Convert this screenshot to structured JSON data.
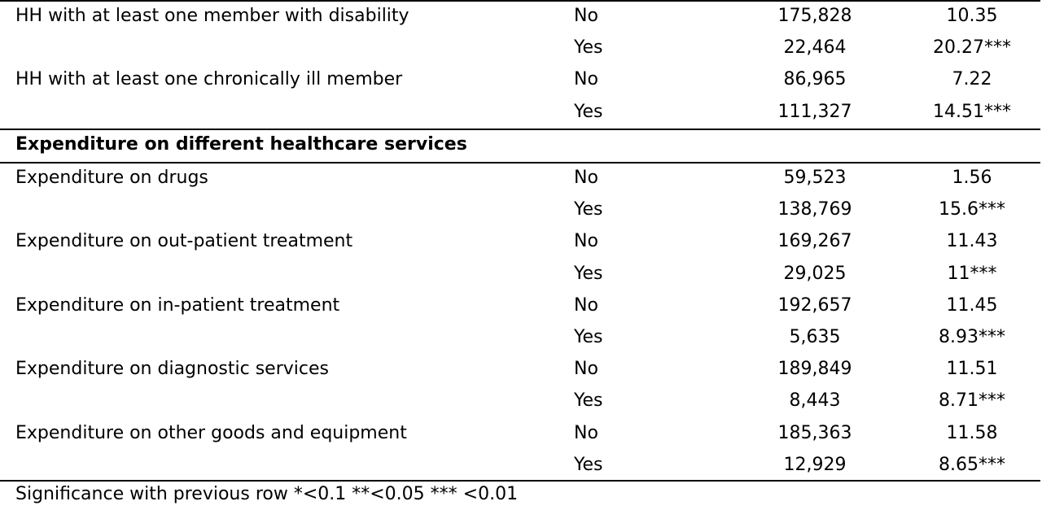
{
  "rows_top": [
    {
      "label": "HH with at least one member with disability",
      "cat": "No",
      "n": "175,828",
      "v": "10.35"
    },
    {
      "label": "",
      "cat": "Yes",
      "n": "22,464",
      "v": "20.27***"
    },
    {
      "label": "HH with at  least one chronically ill member",
      "cat": "No",
      "n": "86,965",
      "v": "7.22"
    },
    {
      "label": "",
      "cat": "Yes",
      "n": "111,327",
      "v": "14.51***"
    }
  ],
  "section_title": "Expenditure on different healthcare services",
  "rows_bottom": [
    {
      "label": "Expenditure on drugs",
      "cat": "No",
      "n": "59,523",
      "v": "1.56"
    },
    {
      "label": "",
      "cat": "Yes",
      "n": "138,769",
      "v": "15.6***"
    },
    {
      "label": "Expenditure on out-patient treatment",
      "cat": "No",
      "n": "169,267",
      "v": "11.43"
    },
    {
      "label": "",
      "cat": "Yes",
      "n": "29,025",
      "v": "11***"
    },
    {
      "label": "Expenditure on in-patient treatment",
      "cat": "No",
      "n": "192,657",
      "v": "11.45"
    },
    {
      "label": "",
      "cat": "Yes",
      "n": "5,635",
      "v": "8.93***"
    },
    {
      "label": "Expenditure on diagnostic services",
      "cat": "No",
      "n": "189,849",
      "v": "11.51"
    },
    {
      "label": "",
      "cat": "Yes",
      "n": "8,443",
      "v": "8.71***"
    },
    {
      "label": "Expenditure on other goods and equipment",
      "cat": "No",
      "n": "185,363",
      "v": "11.58"
    },
    {
      "label": "",
      "cat": "Yes",
      "n": "12,929",
      "v": "8.65***"
    }
  ],
  "footnote": "Significance with previous row *<0.1 **<0.05 *** <0.01"
}
